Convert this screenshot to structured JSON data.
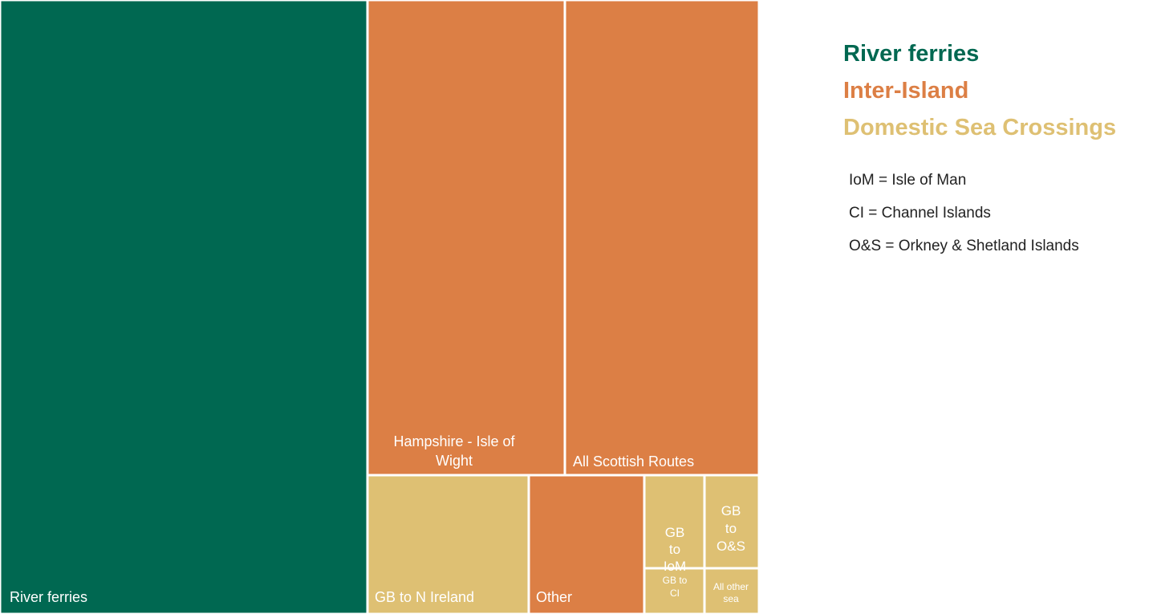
{
  "chart_data": {
    "type": "treemap",
    "title": "",
    "groups": [
      {
        "name": "River ferries",
        "color": "#006851"
      },
      {
        "name": "Inter-Island",
        "color": "#dc7f45"
      },
      {
        "name": "Domestic Sea Crossings",
        "color": "#dec073"
      }
    ],
    "tiles": [
      {
        "label": "River ferries",
        "group": "River ferries",
        "relative_size": 0.475,
        "color": "#006851"
      },
      {
        "label": "Hampshire - Isle of Wight",
        "group": "Inter-Island",
        "relative_size": 0.1717,
        "color": "#dc7f45"
      },
      {
        "label": "All Scottish Routes",
        "group": "Inter-Island",
        "relative_size": 0.1671,
        "color": "#dc7f45"
      },
      {
        "label": "GB to N Ireland",
        "group": "Domestic Sea Crossings",
        "relative_size": 0.0572,
        "color": "#dec073"
      },
      {
        "label": "Other",
        "group": "Inter-Island",
        "relative_size": 0.0408,
        "color": "#dc7f45"
      },
      {
        "label": "GB to IoM",
        "group": "Domestic Sea Crossings",
        "relative_size": 0.0218,
        "color": "#dec073"
      },
      {
        "label": "GB to O&S",
        "group": "Domestic Sea Crossings",
        "relative_size": 0.0199,
        "color": "#dec073"
      },
      {
        "label": "GB to CI",
        "group": "Domestic Sea Crossings",
        "relative_size": 0.0056,
        "color": "#dec073"
      },
      {
        "label": "All other sea",
        "group": "Domestic Sea Crossings",
        "relative_size": 0.0066,
        "color": "#dec073"
      }
    ],
    "legend_position": "top-right",
    "notes": [
      "IoM = Isle of Man",
      "CI = Channel Islands",
      "O&S = Orkney & Shetland Islands"
    ]
  }
}
